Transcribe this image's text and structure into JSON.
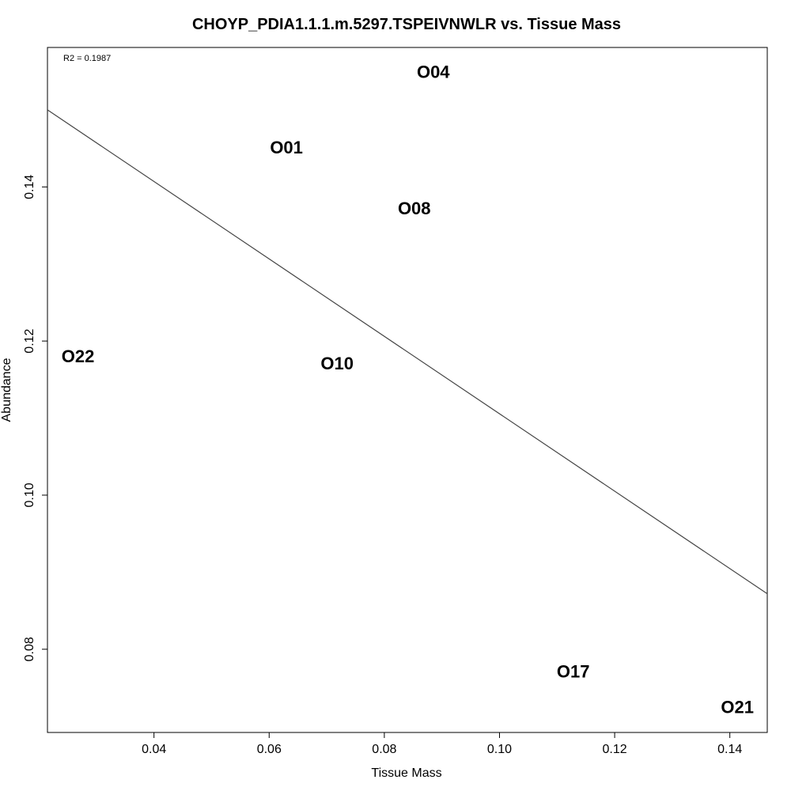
{
  "chart_data": {
    "type": "scatter",
    "title": "CHOYP_PDIA1.1.1.m.5297.TSPEIVNWLR vs. Tissue Mass",
    "xlabel": "Tissue Mass",
    "ylabel": "Abundance",
    "annotation": "R2 = 0.1987",
    "xlim": [
      0.0215,
      0.1465
    ],
    "ylim": [
      0.0692,
      0.1581
    ],
    "x_ticks": [
      0.04,
      0.06,
      0.08,
      0.1,
      0.12,
      0.14
    ],
    "x_tick_labels": [
      "0.04",
      "0.06",
      "0.08",
      "0.10",
      "0.12",
      "0.14"
    ],
    "y_ticks": [
      0.08,
      0.1,
      0.12,
      0.14
    ],
    "y_tick_labels": [
      "0.08",
      "0.10",
      "0.12",
      "0.14"
    ],
    "points": [
      {
        "label": "O04",
        "x": 0.0885,
        "y": 0.1549
      },
      {
        "label": "O01",
        "x": 0.063,
        "y": 0.1451
      },
      {
        "label": "O08",
        "x": 0.0852,
        "y": 0.1372
      },
      {
        "label": "O22",
        "x": 0.0268,
        "y": 0.118
      },
      {
        "label": "O10",
        "x": 0.0718,
        "y": 0.1171
      },
      {
        "label": "O17",
        "x": 0.1128,
        "y": 0.0771
      },
      {
        "label": "O21",
        "x": 0.1413,
        "y": 0.0725
      }
    ],
    "fit_line": {
      "x": [
        0.0215,
        0.1465
      ],
      "y": [
        0.15,
        0.0872
      ]
    },
    "grid": false,
    "legend": "none",
    "colors": {
      "line": "#444444",
      "text": "#000000",
      "frame": "#000000"
    }
  }
}
